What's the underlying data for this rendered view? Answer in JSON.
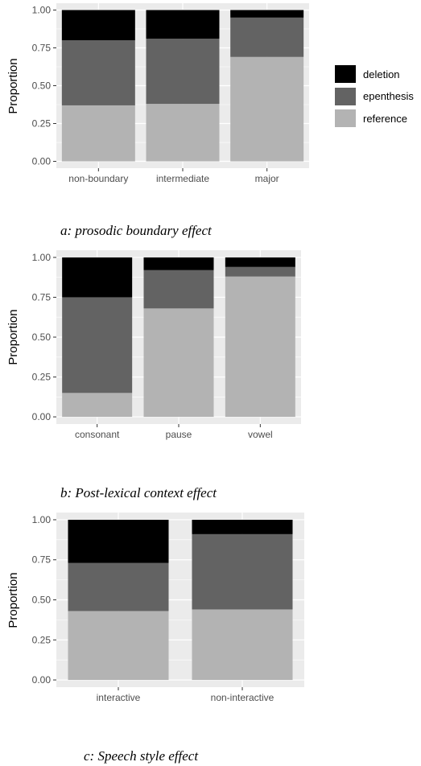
{
  "colors": {
    "deletion": "#000000",
    "epenthesis": "#636363",
    "reference": "#b3b3b3",
    "panel_bg": "#ebebeb",
    "grid_major": "#ffffff"
  },
  "legend": {
    "position": "right of top panel",
    "items": [
      {
        "key": "deletion",
        "label": "deletion"
      },
      {
        "key": "epenthesis",
        "label": "epenthesis"
      },
      {
        "key": "reference",
        "label": "reference"
      }
    ]
  },
  "chart_data": [
    {
      "type": "bar",
      "stacked": true,
      "caption": "a: prosodic boundary effect",
      "ylabel": "Proportion",
      "ylim": [
        0,
        1
      ],
      "yticks": [
        "0.00",
        "0.25",
        "0.50",
        "0.75",
        "1.00"
      ],
      "categories": [
        "non-boundary",
        "intermediate",
        "major"
      ],
      "series": [
        {
          "name": "reference",
          "values": [
            0.37,
            0.38,
            0.69
          ]
        },
        {
          "name": "epenthesis",
          "values": [
            0.43,
            0.43,
            0.26
          ]
        },
        {
          "name": "deletion",
          "values": [
            0.2,
            0.19,
            0.05
          ]
        }
      ]
    },
    {
      "type": "bar",
      "stacked": true,
      "caption": "b: Post-lexical context effect",
      "ylabel": "Proportion",
      "ylim": [
        0,
        1
      ],
      "yticks": [
        "0.00",
        "0.25",
        "0.50",
        "0.75",
        "1.00"
      ],
      "categories": [
        "consonant",
        "pause",
        "vowel"
      ],
      "series": [
        {
          "name": "reference",
          "values": [
            0.15,
            0.68,
            0.88
          ]
        },
        {
          "name": "epenthesis",
          "values": [
            0.6,
            0.24,
            0.06
          ]
        },
        {
          "name": "deletion",
          "values": [
            0.25,
            0.08,
            0.06
          ]
        }
      ]
    },
    {
      "type": "bar",
      "stacked": true,
      "caption": "c: Speech style effect",
      "ylabel": "Proportion",
      "ylim": [
        0,
        1
      ],
      "yticks": [
        "0.00",
        "0.25",
        "0.50",
        "0.75",
        "1.00"
      ],
      "categories": [
        "interactive",
        "non-interactive"
      ],
      "series": [
        {
          "name": "reference",
          "values": [
            0.43,
            0.44
          ]
        },
        {
          "name": "epenthesis",
          "values": [
            0.3,
            0.47
          ]
        },
        {
          "name": "deletion",
          "values": [
            0.27,
            0.09
          ]
        }
      ]
    }
  ]
}
